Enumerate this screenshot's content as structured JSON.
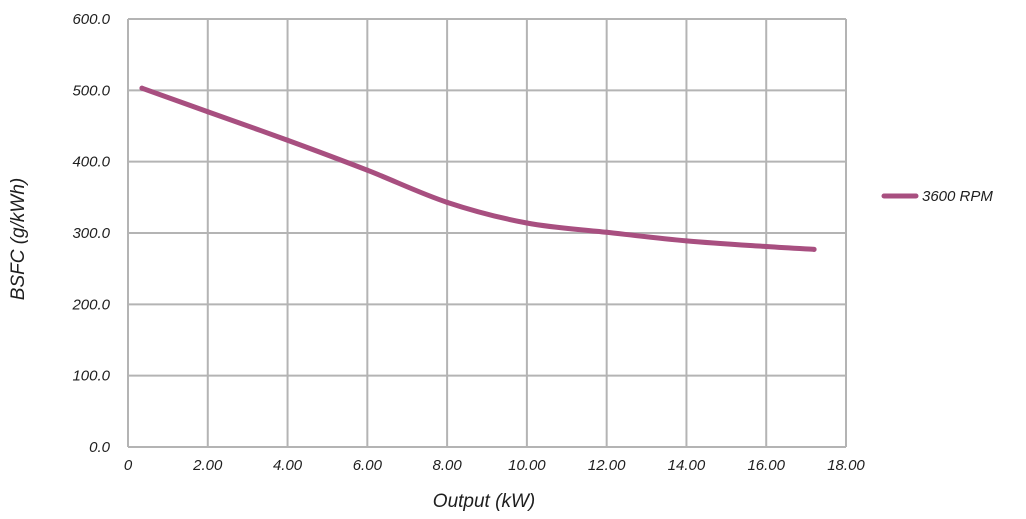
{
  "chart_data": {
    "type": "line",
    "title": "",
    "xlabel": "Output (kW)",
    "ylabel": "BSFC (g/kWh)",
    "xlim": [
      0,
      18
    ],
    "ylim": [
      0,
      600
    ],
    "grid": true,
    "legend_position": "right",
    "x_ticks": [
      {
        "value": 0,
        "label": "0"
      },
      {
        "value": 2,
        "label": "2.00"
      },
      {
        "value": 4,
        "label": "4.00"
      },
      {
        "value": 6,
        "label": "6.00"
      },
      {
        "value": 8,
        "label": "8.00"
      },
      {
        "value": 10,
        "label": "10.00"
      },
      {
        "value": 12,
        "label": "12.00"
      },
      {
        "value": 14,
        "label": "14.00"
      },
      {
        "value": 16,
        "label": "16.00"
      },
      {
        "value": 18,
        "label": "18.00"
      }
    ],
    "y_ticks": [
      {
        "value": 0,
        "label": "0.0"
      },
      {
        "value": 100,
        "label": "100.0"
      },
      {
        "value": 200,
        "label": "200.0"
      },
      {
        "value": 300,
        "label": "300.0"
      },
      {
        "value": 400,
        "label": "400.0"
      },
      {
        "value": 500,
        "label": "500.0"
      },
      {
        "value": 600,
        "label": "600.0"
      }
    ],
    "series": [
      {
        "name": "3600 RPM",
        "color": "#a84f80",
        "x": [
          0.35,
          2,
          4,
          6,
          8,
          10,
          12,
          14,
          16,
          17.2
        ],
        "y": [
          503,
          470,
          430,
          388,
          343,
          314,
          301,
          289,
          281,
          277
        ]
      }
    ]
  }
}
